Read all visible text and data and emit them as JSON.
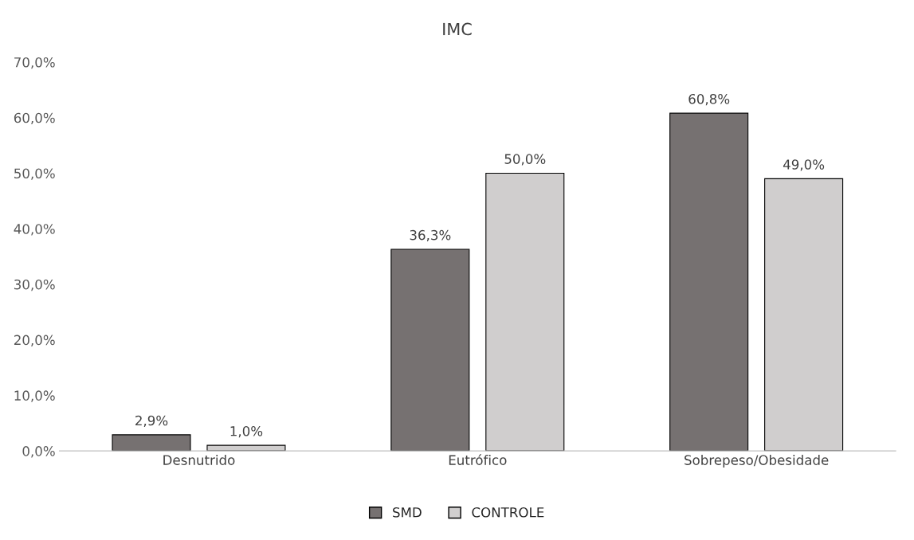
{
  "chart_data": {
    "type": "bar",
    "title": "IMC",
    "categories": [
      "Desnutrido",
      "Eutrófico",
      "Sobrepeso/Obesidade"
    ],
    "series": [
      {
        "name": "SMD",
        "color": "#767171",
        "values": [
          2.9,
          36.3,
          60.8
        ],
        "value_labels": [
          "2,9%",
          "36,3%",
          "60,8%"
        ]
      },
      {
        "name": "CONTROLE",
        "color": "#d0cece",
        "values": [
          1.0,
          50.0,
          49.0
        ],
        "value_labels": [
          "1,0%",
          "50,0%",
          "49,0%"
        ]
      }
    ],
    "ylim": [
      0,
      70
    ],
    "yticks": [
      {
        "value": 0,
        "label": "0,0%"
      },
      {
        "value": 10,
        "label": "10,0%"
      },
      {
        "value": 20,
        "label": "20,0%"
      },
      {
        "value": 30,
        "label": "30,0%"
      },
      {
        "value": 40,
        "label": "40,0%"
      },
      {
        "value": 50,
        "label": "50,0%"
      },
      {
        "value": 60,
        "label": "60,0%"
      },
      {
        "value": 70,
        "label": "70,0%"
      }
    ],
    "grid": false,
    "legend": "bottom"
  }
}
